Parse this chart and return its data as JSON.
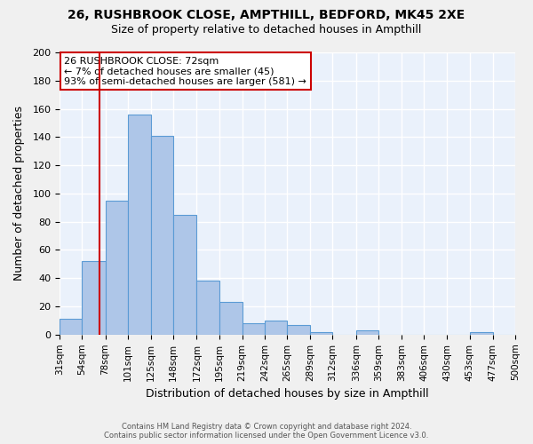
{
  "title_line1": "26, RUSHBROOK CLOSE, AMPTHILL, BEDFORD, MK45 2XE",
  "title_line2": "Size of property relative to detached houses in Ampthill",
  "xlabel": "Distribution of detached houses by size in Ampthill",
  "ylabel": "Number of detached properties",
  "footer_line1": "Contains HM Land Registry data © Crown copyright and database right 2024.",
  "footer_line2": "Contains public sector information licensed under the Open Government Licence v3.0.",
  "bin_labels": [
    "31sqm",
    "54sqm",
    "78sqm",
    "101sqm",
    "125sqm",
    "148sqm",
    "172sqm",
    "195sqm",
    "219sqm",
    "242sqm",
    "265sqm",
    "289sqm",
    "312sqm",
    "336sqm",
    "359sqm",
    "383sqm",
    "406sqm",
    "430sqm",
    "453sqm",
    "477sqm",
    "500sqm"
  ],
  "bin_edges": [
    31,
    54,
    78,
    101,
    125,
    148,
    172,
    195,
    219,
    242,
    265,
    289,
    312,
    336,
    359,
    383,
    406,
    430,
    453,
    477,
    500
  ],
  "bar_heights": [
    11,
    52,
    95,
    156,
    141,
    85,
    38,
    23,
    8,
    10,
    7,
    2,
    0,
    3,
    0,
    0,
    0,
    0,
    2,
    0
  ],
  "bar_facecolor": "#aec6e8",
  "bar_edgecolor": "#5b9bd5",
  "background_color": "#eaf1fb",
  "grid_color": "#ffffff",
  "property_line_x": 72,
  "property_line_color": "#cc0000",
  "annotation_text": "26 RUSHBROOK CLOSE: 72sqm\n← 7% of detached houses are smaller (45)\n93% of semi-detached houses are larger (581) →",
  "annotation_box_edgecolor": "#cc0000",
  "annotation_box_facecolor": "#ffffff",
  "ylim": [
    0,
    200
  ],
  "yticks": [
    0,
    20,
    40,
    60,
    80,
    100,
    120,
    140,
    160,
    180,
    200
  ]
}
